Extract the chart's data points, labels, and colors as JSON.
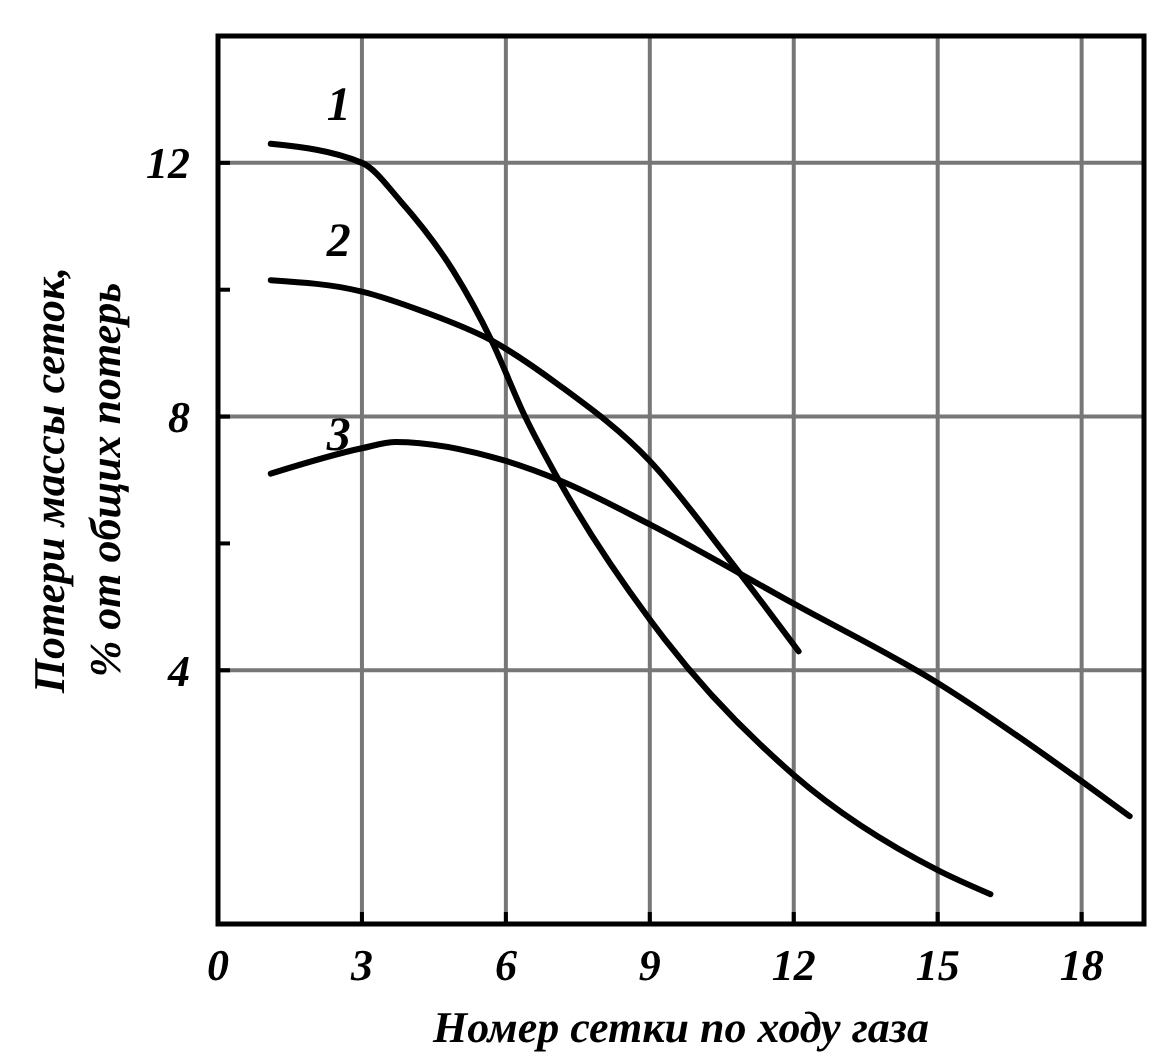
{
  "chart_data": {
    "type": "line",
    "xlabel": "Номер сетки по ходу газа",
    "ylabel": "Потери массы сеток,\n% от общих потерь",
    "xlim": [
      0,
      19.3
    ],
    "ylim": [
      0,
      14
    ],
    "xticks": [
      0,
      3,
      6,
      9,
      12,
      15,
      18
    ],
    "yticks": [
      4,
      {
        "value": 6,
        "label": null
      },
      8,
      {
        "value": 10,
        "label": null
      },
      12
    ],
    "grid": true,
    "marker": "none",
    "line_style": "solid",
    "series": [
      {
        "name": "1",
        "color": "#000000",
        "x": [
          1.1,
          3,
          3.8,
          4.9,
          5.7,
          6.4,
          7.1,
          9,
          9.3,
          12,
          15,
          16.1
        ],
        "values": [
          12.3,
          12.0,
          11.4,
          10.3,
          9.2,
          8.0,
          7.0,
          4.8,
          4.5,
          2.35,
          0.85,
          0.47
        ]
      },
      {
        "name": "2",
        "color": "#000000",
        "x": [
          1.1,
          3,
          4.3,
          5.7,
          7.1,
          9,
          10.6,
          12.1
        ],
        "values": [
          10.15,
          9.97,
          9.65,
          9.2,
          8.5,
          7.3,
          5.8,
          4.3
        ]
      },
      {
        "name": "3",
        "color": "#000000",
        "x": [
          1.1,
          3,
          3.7,
          6,
          7.1,
          9,
          12,
          15,
          18,
          19
        ],
        "values": [
          7.1,
          7.5,
          7.6,
          7.3,
          7.0,
          6.3,
          5.05,
          3.8,
          2.25,
          1.7
        ]
      }
    ]
  }
}
